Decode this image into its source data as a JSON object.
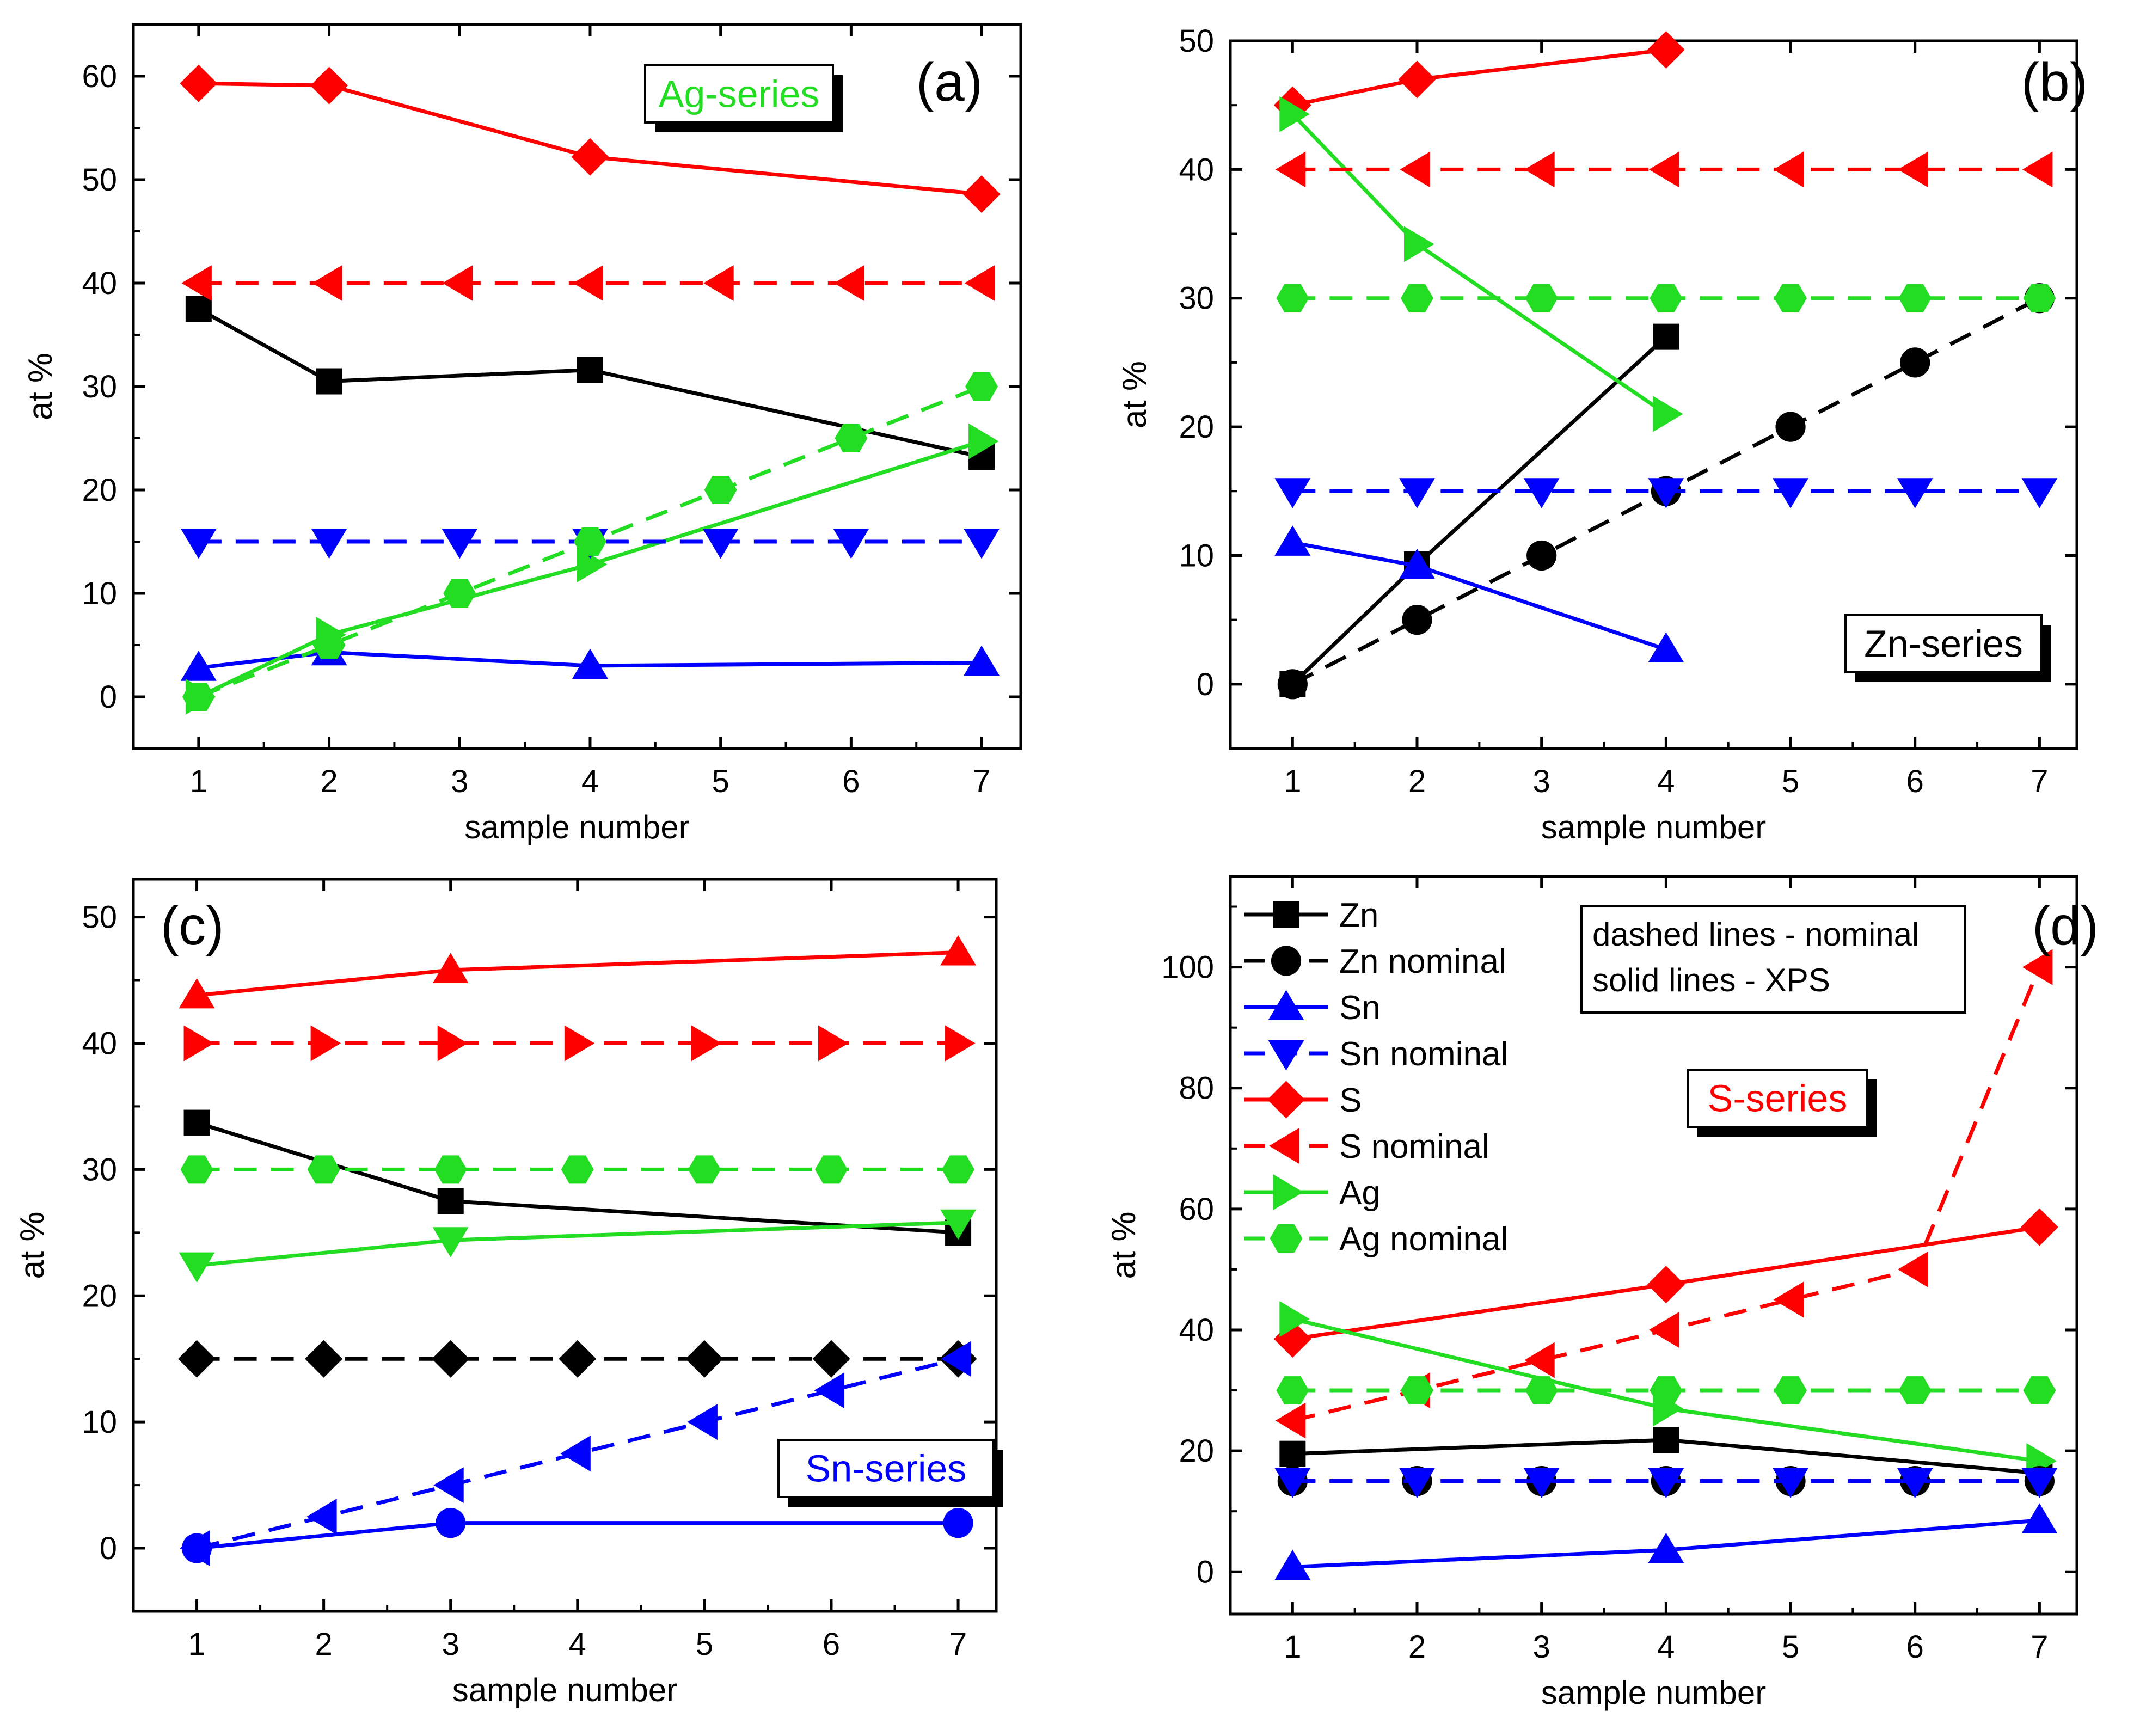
{
  "chart_data": [
    {
      "type": "line",
      "panel_label": "(a)",
      "series_box": "Ag-series",
      "series_box_color": "#22dd22",
      "xlabel": "sample number",
      "ylabel": "at %",
      "xlim": [
        0.5,
        7.3
      ],
      "ylim": [
        -5,
        65
      ],
      "xticks": [
        1,
        2,
        3,
        4,
        5,
        6,
        7
      ],
      "yticks": [
        0,
        10,
        20,
        30,
        40,
        50,
        60
      ],
      "series": [
        {
          "name": "Zn",
          "color": "#000000",
          "dash": false,
          "marker": "square",
          "points": [
            [
              1,
              37.5
            ],
            [
              2,
              30.5
            ],
            [
              4,
              31.6
            ],
            [
              7,
              23.2
            ]
          ]
        },
        {
          "name": "Sn",
          "color": "#0000ff",
          "dash": false,
          "marker": "triangle-up",
          "points": [
            [
              1,
              2.8
            ],
            [
              2,
              4.3
            ],
            [
              4,
              3.0
            ],
            [
              7,
              3.3
            ]
          ]
        },
        {
          "name": "S",
          "color": "#ff0000",
          "dash": false,
          "marker": "diamond",
          "points": [
            [
              1,
              59.3
            ],
            [
              2,
              59.1
            ],
            [
              4,
              52.2
            ],
            [
              7,
              48.6
            ]
          ]
        },
        {
          "name": "Ag",
          "color": "#22dd22",
          "dash": false,
          "marker": "triangle-right",
          "points": [
            [
              1,
              0
            ],
            [
              2,
              6.0
            ],
            [
              4,
              12.8
            ],
            [
              7,
              24.7
            ]
          ]
        },
        {
          "name": "Sn nominal",
          "color": "#0000ff",
          "dash": true,
          "marker": "triangle-down",
          "points": [
            [
              1,
              15
            ],
            [
              2,
              15
            ],
            [
              3,
              15
            ],
            [
              4,
              15
            ],
            [
              5,
              15
            ],
            [
              6,
              15
            ],
            [
              7,
              15
            ]
          ]
        },
        {
          "name": "S nominal",
          "color": "#ff0000",
          "dash": true,
          "marker": "triangle-left",
          "points": [
            [
              1,
              40
            ],
            [
              2,
              40
            ],
            [
              3,
              40
            ],
            [
              4,
              40
            ],
            [
              5,
              40
            ],
            [
              6,
              40
            ],
            [
              7,
              40
            ]
          ]
        },
        {
          "name": "Ag nominal",
          "color": "#22dd22",
          "dash": true,
          "marker": "hexagon",
          "points": [
            [
              1,
              0
            ],
            [
              2,
              5
            ],
            [
              3,
              10
            ],
            [
              4,
              15
            ],
            [
              5,
              20
            ],
            [
              6,
              25
            ],
            [
              7,
              30
            ]
          ]
        }
      ]
    },
    {
      "type": "line",
      "panel_label": "(b)",
      "series_box": "Zn-series",
      "series_box_color": "#000000",
      "xlabel": "sample number",
      "ylabel": "at %",
      "xlim": [
        0.5,
        7.3
      ],
      "ylim": [
        -5,
        50
      ],
      "xticks": [
        1,
        2,
        3,
        4,
        5,
        6,
        7
      ],
      "yticks": [
        0,
        10,
        20,
        30,
        40,
        50
      ],
      "series": [
        {
          "name": "Zn",
          "color": "#000000",
          "dash": false,
          "marker": "square",
          "points": [
            [
              1,
              0
            ],
            [
              2,
              9.3
            ],
            [
              4,
              27
            ]
          ]
        },
        {
          "name": "Sn",
          "color": "#0000ff",
          "dash": false,
          "marker": "triangle-up",
          "points": [
            [
              1,
              11
            ],
            [
              2,
              9.2
            ],
            [
              4,
              2.7
            ]
          ]
        },
        {
          "name": "S",
          "color": "#ff0000",
          "dash": false,
          "marker": "diamond",
          "points": [
            [
              1,
              45
            ],
            [
              2,
              47
            ],
            [
              4,
              49.3
            ]
          ]
        },
        {
          "name": "Ag",
          "color": "#22dd22",
          "dash": false,
          "marker": "triangle-right",
          "points": [
            [
              1,
              44.3
            ],
            [
              2,
              34.2
            ],
            [
              4,
              21
            ]
          ]
        },
        {
          "name": "Zn nominal",
          "color": "#000000",
          "dash": true,
          "marker": "circle",
          "points": [
            [
              1,
              0
            ],
            [
              2,
              5
            ],
            [
              3,
              10
            ],
            [
              4,
              15
            ],
            [
              5,
              20
            ],
            [
              6,
              25
            ],
            [
              7,
              30
            ]
          ]
        },
        {
          "name": "Sn nominal",
          "color": "#0000ff",
          "dash": true,
          "marker": "triangle-down",
          "points": [
            [
              1,
              15
            ],
            [
              2,
              15
            ],
            [
              3,
              15
            ],
            [
              4,
              15
            ],
            [
              5,
              15
            ],
            [
              6,
              15
            ],
            [
              7,
              15
            ]
          ]
        },
        {
          "name": "S nominal",
          "color": "#ff0000",
          "dash": true,
          "marker": "triangle-left",
          "points": [
            [
              1,
              40
            ],
            [
              2,
              40
            ],
            [
              3,
              40
            ],
            [
              4,
              40
            ],
            [
              5,
              40
            ],
            [
              6,
              40
            ],
            [
              7,
              40
            ]
          ]
        },
        {
          "name": "Ag nominal",
          "color": "#22dd22",
          "dash": true,
          "marker": "hexagon",
          "points": [
            [
              1,
              30
            ],
            [
              2,
              30
            ],
            [
              3,
              30
            ],
            [
              4,
              30
            ],
            [
              5,
              30
            ],
            [
              6,
              30
            ],
            [
              7,
              30
            ]
          ]
        }
      ]
    },
    {
      "type": "line",
      "panel_label": "(c)",
      "series_box": "Sn-series",
      "series_box_color": "#0000ff",
      "xlabel": "sample number",
      "ylabel": "at %",
      "xlim": [
        0.5,
        7.3
      ],
      "ylim": [
        -5,
        53
      ],
      "xticks": [
        1,
        2,
        3,
        4,
        5,
        6,
        7
      ],
      "yticks": [
        0,
        10,
        20,
        30,
        40,
        50
      ],
      "series": [
        {
          "name": "Zn",
          "color": "#000000",
          "dash": false,
          "marker": "square",
          "points": [
            [
              1,
              33.7
            ],
            [
              3,
              27.5
            ],
            [
              7,
              25
            ]
          ]
        },
        {
          "name": "Sn",
          "color": "#0000ff",
          "dash": false,
          "marker": "circle",
          "points": [
            [
              1,
              0
            ],
            [
              3,
              2
            ],
            [
              7,
              2
            ]
          ]
        },
        {
          "name": "S",
          "color": "#ff0000",
          "dash": false,
          "marker": "triangle-up",
          "points": [
            [
              1,
              43.8
            ],
            [
              3,
              45.8
            ],
            [
              7,
              47.2
            ]
          ]
        },
        {
          "name": "Ag",
          "color": "#22dd22",
          "dash": false,
          "marker": "triangle-down",
          "points": [
            [
              1,
              22.4
            ],
            [
              3,
              24.4
            ],
            [
              7,
              25.8
            ]
          ]
        },
        {
          "name": "Zn nominal",
          "color": "#000000",
          "dash": true,
          "marker": "diamond",
          "points": [
            [
              1,
              15
            ],
            [
              2,
              15
            ],
            [
              3,
              15
            ],
            [
              4,
              15
            ],
            [
              5,
              15
            ],
            [
              6,
              15
            ],
            [
              7,
              15
            ]
          ]
        },
        {
          "name": "Sn nominal",
          "color": "#0000ff",
          "dash": true,
          "marker": "triangle-left",
          "points": [
            [
              1,
              0
            ],
            [
              2,
              2.5
            ],
            [
              3,
              5
            ],
            [
              4,
              7.5
            ],
            [
              5,
              10
            ],
            [
              6,
              12.5
            ],
            [
              7,
              15
            ]
          ]
        },
        {
          "name": "S nominal",
          "color": "#ff0000",
          "dash": true,
          "marker": "triangle-right",
          "points": [
            [
              1,
              40
            ],
            [
              2,
              40
            ],
            [
              3,
              40
            ],
            [
              4,
              40
            ],
            [
              5,
              40
            ],
            [
              6,
              40
            ],
            [
              7,
              40
            ]
          ]
        },
        {
          "name": "Ag nominal",
          "color": "#22dd22",
          "dash": true,
          "marker": "hexagon",
          "points": [
            [
              1,
              30
            ],
            [
              2,
              30
            ],
            [
              3,
              30
            ],
            [
              4,
              30
            ],
            [
              5,
              30
            ],
            [
              6,
              30
            ],
            [
              7,
              30
            ]
          ]
        }
      ]
    },
    {
      "type": "line",
      "panel_label": "(d)",
      "series_box": "S-series",
      "series_box_color": "#ff0000",
      "xlabel": "sample number",
      "ylabel": "at %",
      "xlim": [
        0.5,
        7.3
      ],
      "ylim": [
        -7,
        115
      ],
      "xticks": [
        1,
        2,
        3,
        4,
        5,
        6,
        7
      ],
      "yticks": [
        0,
        20,
        40,
        60,
        80,
        100
      ],
      "note": [
        "dashed lines - nominal",
        "solid lines - XPS"
      ],
      "legend": [
        {
          "label": "Zn",
          "color": "#000000",
          "dash": false,
          "marker": "square"
        },
        {
          "label": "Zn nominal",
          "color": "#000000",
          "dash": true,
          "marker": "circle"
        },
        {
          "label": "Sn",
          "color": "#0000ff",
          "dash": false,
          "marker": "triangle-up"
        },
        {
          "label": "Sn nominal",
          "color": "#0000ff",
          "dash": true,
          "marker": "triangle-down"
        },
        {
          "label": "S",
          "color": "#ff0000",
          "dash": false,
          "marker": "diamond"
        },
        {
          "label": "S nominal",
          "color": "#ff0000",
          "dash": true,
          "marker": "triangle-left"
        },
        {
          "label": "Ag",
          "color": "#22dd22",
          "dash": false,
          "marker": "triangle-right"
        },
        {
          "label": "Ag nominal",
          "color": "#22dd22",
          "dash": true,
          "marker": "hexagon"
        }
      ],
      "series": [
        {
          "name": "Zn",
          "color": "#000000",
          "dash": false,
          "marker": "square",
          "points": [
            [
              1,
              19.5
            ],
            [
              4,
              21.8
            ],
            [
              7,
              16.3
            ]
          ]
        },
        {
          "name": "Sn",
          "color": "#0000ff",
          "dash": false,
          "marker": "triangle-up",
          "points": [
            [
              1,
              0.8
            ],
            [
              4,
              3.6
            ],
            [
              7,
              8.5
            ]
          ]
        },
        {
          "name": "S",
          "color": "#ff0000",
          "dash": false,
          "marker": "diamond",
          "points": [
            [
              1,
              38.5
            ],
            [
              4,
              47.5
            ],
            [
              7,
              57
            ]
          ]
        },
        {
          "name": "Ag",
          "color": "#22dd22",
          "dash": false,
          "marker": "triangle-right",
          "points": [
            [
              1,
              41.8
            ],
            [
              4,
              27
            ],
            [
              7,
              18.3
            ]
          ]
        },
        {
          "name": "Zn nominal",
          "color": "#000000",
          "dash": true,
          "marker": "circle",
          "points": [
            [
              1,
              15
            ],
            [
              2,
              15
            ],
            [
              3,
              15
            ],
            [
              4,
              15
            ],
            [
              5,
              15
            ],
            [
              6,
              15
            ],
            [
              7,
              15
            ]
          ]
        },
        {
          "name": "Sn nominal",
          "color": "#0000ff",
          "dash": true,
          "marker": "triangle-down",
          "points": [
            [
              1,
              15
            ],
            [
              2,
              15
            ],
            [
              3,
              15
            ],
            [
              4,
              15
            ],
            [
              5,
              15
            ],
            [
              6,
              15
            ],
            [
              7,
              15
            ]
          ]
        },
        {
          "name": "S nominal",
          "color": "#ff0000",
          "dash": true,
          "marker": "triangle-left",
          "points": [
            [
              1,
              25
            ],
            [
              2,
              30
            ],
            [
              3,
              35
            ],
            [
              4,
              40
            ],
            [
              5,
              45
            ],
            [
              6,
              50
            ],
            [
              7,
              100
            ]
          ]
        },
        {
          "name": "Ag nominal",
          "color": "#22dd22",
          "dash": true,
          "marker": "hexagon",
          "points": [
            [
              1,
              30
            ],
            [
              2,
              30
            ],
            [
              3,
              30
            ],
            [
              4,
              30
            ],
            [
              5,
              30
            ],
            [
              6,
              30
            ],
            [
              7,
              30
            ]
          ]
        }
      ]
    }
  ]
}
